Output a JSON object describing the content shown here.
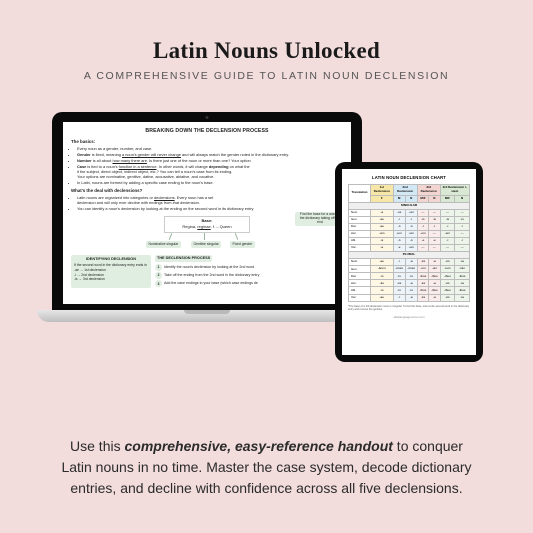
{
  "header": {
    "title": "Latin Nouns Unlocked",
    "subtitle": "A COMPREHENSIVE GUIDE TO LATIN NOUN DECLENSION"
  },
  "laptop_doc": {
    "heading": "BREAKING DOWN THE DECLENSION PROCESS",
    "section1": "The basics:",
    "bullets1": [
      "Every noun as a gender, number, and case.",
      "Gender is fixed, meaning a noun's gender will never change and will always match the gender noted in the dictionary entry.",
      "Number is all about how many there are. Is there just one of the noun or more than one? Your option",
      "Case is tied to a noun's function in a sentence. In other words, it will change depending on what the",
      "it the subject, direct object, indirect object, etc.? You can tell a noun's case from its ending.",
      "Your options are nominative, genitive, dative, accusative, ablative, and vocative.",
      "In Latin, nouns are formed by adding a specific case ending to the noun's base."
    ],
    "section2": "What's the deal with declensions?",
    "bullets2": [
      "Latin nouns are organized into categories or declensions. Every noun has a set",
      "declension and will only ever decline with endings from that declension.",
      "You can identify a noun's declension by looking at the ending on the second word in its dictionary entry"
    ],
    "base_label": "Base:",
    "base_entry": "Regina, reginae, f. - Queen",
    "arrow_labels": [
      "Nominative singular",
      "Genitive singular",
      "Fixed gender"
    ],
    "right_tip": "Find the base for a word in the dictionary taking off the end",
    "identify": {
      "title": "IDENTIFYING DECLENSION",
      "intro": "If the second word in the dictionary entry ends in",
      "rows": [
        "-ae → 1st declension",
        "-i → 2nd declension",
        "-is → 3rd declension"
      ]
    },
    "process": {
      "title": "THE DECLENSION PROCESS",
      "steps": [
        "Identify the noun's declension by looking at the 2nd word",
        "Take off the ending from the 2nd word in the dictionary entry",
        "Add the case endings to your base (which case endings de"
      ]
    }
  },
  "tablet_chart": {
    "title": "LATIN NOUN DECLENSION CHART",
    "head_trans": "Translation",
    "head_cols": [
      "1st Declension",
      "2nd Declension",
      "3rd Declension",
      "3rd Declension i-stem"
    ],
    "head_sub": [
      "F",
      "M",
      "N",
      "M/F",
      "N",
      "M/F",
      "N"
    ],
    "sections": [
      "SINGULAR",
      "PLURAL"
    ],
    "cases_s": [
      [
        "Nom.",
        "-a",
        "-us",
        "-um",
        "—",
        "—",
        "—",
        "—"
      ],
      [
        "Gen.",
        "-ae",
        "-ī",
        "-ī",
        "-is",
        "-is",
        "-is",
        "-is"
      ],
      [
        "Dat.",
        "-ae",
        "-ō",
        "-ō",
        "-ī",
        "-ī",
        "-ī",
        "-ī"
      ],
      [
        "Acc.",
        "-am",
        "-um",
        "-um",
        "-em",
        "—",
        "-em",
        "—"
      ],
      [
        "Abl.",
        "-ā",
        "-ō",
        "-ō",
        "-e",
        "-e",
        "-ī",
        "-ī"
      ],
      [
        "Voc.",
        "-a",
        "-e",
        "-um",
        "—",
        "—",
        "—",
        "—"
      ]
    ],
    "cases_p": [
      [
        "Nom.",
        "-ae",
        "-ī",
        "-a",
        "-ēs",
        "-a",
        "-ēs",
        "-ia"
      ],
      [
        "Gen.",
        "-ārum",
        "-ōrum",
        "-ōrum",
        "-um",
        "-um",
        "-ium",
        "-ium"
      ],
      [
        "Dat.",
        "-īs",
        "-īs",
        "-īs",
        "-ibus",
        "-ibus",
        "-ibus",
        "-ibus"
      ],
      [
        "Acc.",
        "-ās",
        "-ōs",
        "-a",
        "-ēs",
        "-a",
        "-ēs",
        "-ia"
      ],
      [
        "Abl.",
        "-īs",
        "-īs",
        "-īs",
        "-ibus",
        "-ibus",
        "-ibus",
        "-ibus"
      ],
      [
        "Voc.",
        "-ae",
        "-ī",
        "-a",
        "-ēs",
        "-a",
        "-ēs",
        "-ia"
      ]
    ],
    "footnote": "*The base of a 3rd declension noun is irregular. To find the base, look at the second word in the dictionary entry and remove the genitive",
    "site": "ellaslanguagecorner.com",
    "colors": {
      "col1_head": "#f6e7a8",
      "col1_body": "#fdf7e4",
      "col2_head": "#d3e8f5",
      "col2_body": "#ecf4fa",
      "col3_head": "#f2d4d0",
      "col3_body": "#faeceb",
      "col3b_head": "#d8e8d2",
      "col3b_body": "#edf4ea"
    }
  },
  "copy": {
    "lead": "Use this ",
    "bold": "comprehensive, easy-reference handout",
    "rest": " to conquer Latin nouns in no time. Master the case system, decode dictionary entries, and decline with confidence across all five declensions."
  },
  "palette": {
    "page_bg": "#f2dcdc",
    "green_box": "#dfeee0",
    "device_black": "#0a0a0a"
  }
}
